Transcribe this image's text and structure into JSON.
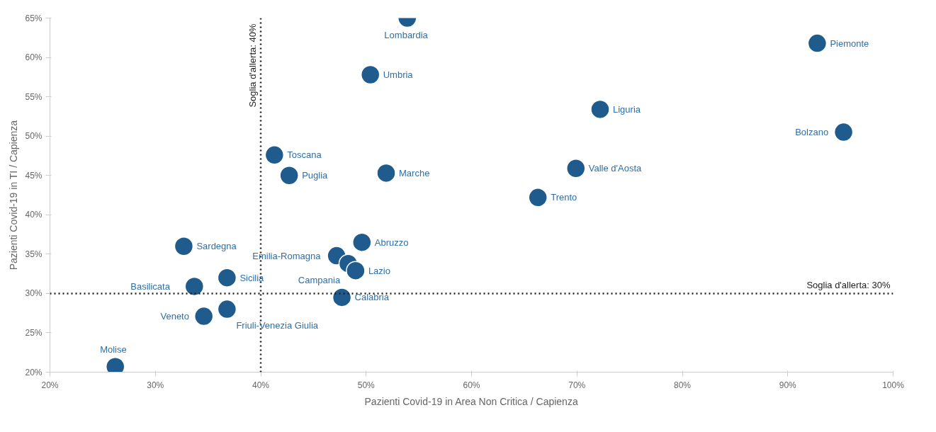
{
  "chart_data": {
    "type": "scatter",
    "xlabel": "Pazienti Covid-19 in Area Non Critica / Capienza",
    "ylabel": "Pazienti Covid-19 in TI / Capienza",
    "x": [
      53.9,
      92.8,
      50.4,
      72.2,
      95.3,
      41.3,
      42.7,
      51.9,
      69.9,
      66.3,
      32.7,
      49.6,
      47.2,
      48.3,
      49.0,
      36.8,
      33.7,
      47.7,
      36.8,
      34.6,
      26.2
    ],
    "values": [
      65.0,
      61.8,
      57.8,
      53.4,
      50.5,
      47.6,
      45.0,
      45.3,
      45.9,
      42.2,
      36.0,
      36.5,
      34.8,
      33.8,
      32.9,
      32.0,
      30.9,
      29.5,
      28.0,
      27.1,
      20.7
    ],
    "color": "#1f5b8c",
    "marker": "circle",
    "grid": false,
    "legend": false,
    "xlim": [
      20,
      100
    ],
    "ylim": [
      20,
      65
    ],
    "xticks": [
      {
        "value": 20,
        "label": "20%"
      },
      {
        "value": 30,
        "label": "30%"
      },
      {
        "value": 40,
        "label": "40%"
      },
      {
        "value": 50,
        "label": "50%"
      },
      {
        "value": 60,
        "label": "60%"
      },
      {
        "value": 70,
        "label": "70%"
      },
      {
        "value": 80,
        "label": "80%"
      },
      {
        "value": 90,
        "label": "90%"
      },
      {
        "value": 100,
        "label": "100%"
      }
    ],
    "yticks": [
      {
        "value": 20,
        "label": "20%"
      },
      {
        "value": 25,
        "label": "25%"
      },
      {
        "value": 30,
        "label": "30%"
      },
      {
        "value": 35,
        "label": "35%"
      },
      {
        "value": 40,
        "label": "40%"
      },
      {
        "value": 45,
        "label": "45%"
      },
      {
        "value": 50,
        "label": "50%"
      },
      {
        "value": 55,
        "label": "55%"
      },
      {
        "value": 60,
        "label": "60%"
      },
      {
        "value": 65,
        "label": "65%"
      }
    ],
    "ref_lines": [
      {
        "axis": "x",
        "value": 40,
        "label": "Soglia d'allerta: 40%",
        "color": "#222222",
        "line_style": "dotted"
      },
      {
        "axis": "y",
        "value": 30,
        "label": "Soglia d'allerta: 30%",
        "color": "#222222",
        "line_style": "dotted"
      }
    ],
    "annotations": [
      {
        "text": "Lombardia",
        "x": 53.9,
        "y": 65.0
      },
      {
        "text": "Piemonte",
        "x": 92.8,
        "y": 61.8
      },
      {
        "text": "Umbria",
        "x": 50.4,
        "y": 57.8
      },
      {
        "text": "Liguria",
        "x": 72.2,
        "y": 53.4
      },
      {
        "text": "Bolzano",
        "x": 95.3,
        "y": 50.5
      },
      {
        "text": "Toscana",
        "x": 41.3,
        "y": 47.6
      },
      {
        "text": "Puglia",
        "x": 42.7,
        "y": 45.0
      },
      {
        "text": "Marche",
        "x": 51.9,
        "y": 45.3
      },
      {
        "text": "Valle d'Aosta",
        "x": 69.9,
        "y": 45.9
      },
      {
        "text": "Trento",
        "x": 66.3,
        "y": 42.2
      },
      {
        "text": "Sardegna",
        "x": 32.7,
        "y": 36.0
      },
      {
        "text": "Abruzzo",
        "x": 49.6,
        "y": 36.5
      },
      {
        "text": "Emilia-Romagna",
        "x": 47.2,
        "y": 34.8
      },
      {
        "text": "Campania",
        "x": 48.3,
        "y": 33.8
      },
      {
        "text": "Lazio",
        "x": 49.0,
        "y": 32.9
      },
      {
        "text": "Sicilia",
        "x": 36.8,
        "y": 32.0
      },
      {
        "text": "Basilicata",
        "x": 33.7,
        "y": 30.9
      },
      {
        "text": "Calabria",
        "x": 47.7,
        "y": 29.5
      },
      {
        "text": "Friuli-Venezia Giulia",
        "x": 36.8,
        "y": 28.0
      },
      {
        "text": "Veneto",
        "x": 34.6,
        "y": 27.1
      },
      {
        "text": "Molise",
        "x": 26.2,
        "y": 20.7
      }
    ]
  }
}
